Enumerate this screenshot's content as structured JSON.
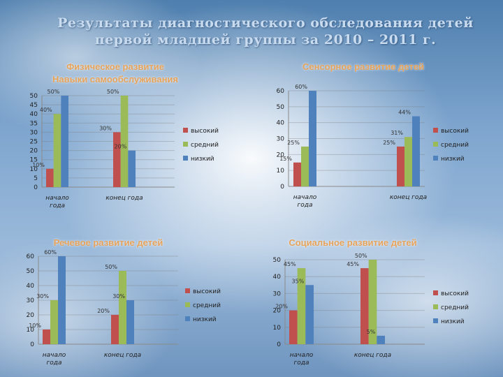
{
  "page": {
    "title_line1": "Результаты диагностического обследования детей",
    "title_line2": "первой младшей группы за 2010 – 2011 г."
  },
  "colors": {
    "high": "#c0504d",
    "mid": "#9bbb59",
    "low": "#4f81bd",
    "title": "#e8a35a"
  },
  "chart_data": [
    {
      "type": "bar",
      "title_line1": "Физическое развитие",
      "title_line2": "Навыки самообслуживания",
      "categories": [
        "начало года",
        "конец года"
      ],
      "ylim": [
        0,
        50
      ],
      "yticks": [
        0,
        5,
        10,
        15,
        20,
        25,
        30,
        35,
        40,
        45,
        50
      ],
      "series": [
        {
          "name": "высокий",
          "values": [
            10,
            30
          ]
        },
        {
          "name": "средний",
          "values": [
            40,
            50
          ]
        },
        {
          "name": "низкий",
          "values": [
            50,
            20
          ]
        }
      ],
      "data_labels": [
        {
          "text": "10%",
          "series": 0,
          "cat": 0
        },
        {
          "text": "40%",
          "series": 1,
          "cat": 0
        },
        {
          "text": "50%",
          "series": 2,
          "cat": 0
        },
        {
          "text": "30%",
          "series": 0,
          "cat": 1
        },
        {
          "text": "50%",
          "series": 1,
          "cat": 1
        },
        {
          "text": "20%",
          "series": 2,
          "cat": 1
        }
      ],
      "legend": "right"
    },
    {
      "type": "bar",
      "title_line1": "Сенсорное развитие детей",
      "categories": [
        "начало года",
        "конец года"
      ],
      "ylim": [
        0,
        60
      ],
      "yticks": [
        0,
        10,
        20,
        30,
        40,
        50,
        60
      ],
      "series": [
        {
          "name": "высокий",
          "values": [
            15,
            25
          ]
        },
        {
          "name": "средний",
          "values": [
            25,
            31
          ]
        },
        {
          "name": "низкий",
          "values": [
            60,
            44
          ]
        }
      ],
      "data_labels": [
        {
          "text": "15%",
          "series": 0,
          "cat": 0
        },
        {
          "text": "25%",
          "series": 1,
          "cat": 0
        },
        {
          "text": "60%",
          "series": 2,
          "cat": 0
        },
        {
          "text": "25%",
          "series": 0,
          "cat": 1
        },
        {
          "text": "31%",
          "series": 1,
          "cat": 1
        },
        {
          "text": "44%",
          "series": 2,
          "cat": 1
        }
      ],
      "legend": "right"
    },
    {
      "type": "bar",
      "title_line1": "Речевое развитие детей",
      "categories": [
        "начало года",
        "конец года"
      ],
      "ylim": [
        0,
        60
      ],
      "yticks": [
        0,
        10,
        20,
        30,
        40,
        50,
        60
      ],
      "series": [
        {
          "name": "высокий",
          "values": [
            10,
            20
          ]
        },
        {
          "name": "средний",
          "values": [
            30,
            50
          ]
        },
        {
          "name": "низкий",
          "values": [
            60,
            30
          ]
        }
      ],
      "data_labels": [
        {
          "text": "10%",
          "series": 0,
          "cat": 0
        },
        {
          "text": "30%",
          "series": 1,
          "cat": 0
        },
        {
          "text": "60%",
          "series": 2,
          "cat": 0
        },
        {
          "text": "20%",
          "series": 0,
          "cat": 1
        },
        {
          "text": "50%",
          "series": 1,
          "cat": 1
        },
        {
          "text": "30%",
          "series": 2,
          "cat": 1
        }
      ],
      "legend": "right"
    },
    {
      "type": "bar",
      "title_line1": "Социальное развитие детей",
      "categories": [
        "начало года",
        "конец года"
      ],
      "ylim": [
        0,
        50
      ],
      "yticks": [
        0,
        10,
        20,
        30,
        40,
        50
      ],
      "series": [
        {
          "name": "высокий",
          "values": [
            20,
            45
          ]
        },
        {
          "name": "средний",
          "values": [
            45,
            50
          ]
        },
        {
          "name": "низкий",
          "values": [
            35,
            5
          ]
        }
      ],
      "data_labels": [
        {
          "text": "20%",
          "series": 0,
          "cat": 0
        },
        {
          "text": "45%",
          "series": 1,
          "cat": 0
        },
        {
          "text": "35%",
          "series": 2,
          "cat": 0
        },
        {
          "text": "45%",
          "series": 0,
          "cat": 1
        },
        {
          "text": "50%",
          "series": 1,
          "cat": 1
        },
        {
          "text": "5%",
          "series": 2,
          "cat": 1
        }
      ],
      "legend": "right"
    }
  ]
}
